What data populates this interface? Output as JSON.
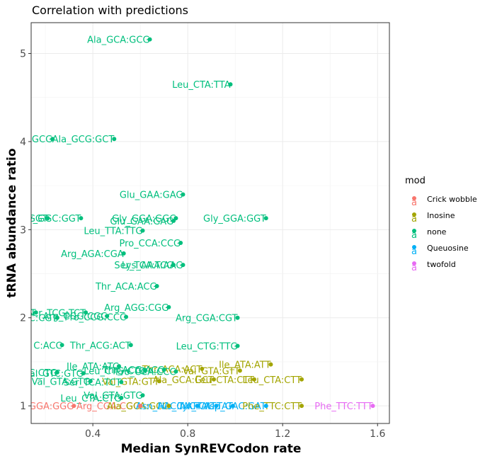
{
  "chart_data": {
    "type": "scatter",
    "title": "Correlation with predictions",
    "xlabel": "Median SynREVCodon rate",
    "ylabel": "tRNA abundance ratio",
    "xlim": [
      0.14,
      1.65
    ],
    "ylim": [
      0.8,
      5.35
    ],
    "xticks": [
      0.4,
      0.8,
      1.2,
      1.6
    ],
    "xtick_labels": [
      "0.4",
      "0.8",
      "1.2",
      "1.6"
    ],
    "yticks": [
      1,
      2,
      3,
      4,
      5
    ],
    "ytick_labels": [
      "1",
      "2",
      "3",
      "4",
      "5"
    ],
    "grid": true,
    "legend": {
      "title": "mod",
      "position": "right",
      "entries": [
        {
          "name": "Crick wobble",
          "color": "#F8766D"
        },
        {
          "name": "Inosine",
          "color": "#A3A500"
        },
        {
          "name": "none",
          "color": "#00BF7D"
        },
        {
          "name": "Queuosine",
          "color": "#00B0F6"
        },
        {
          "name": "twofold",
          "color": "#E76BF3"
        }
      ]
    },
    "points": [
      {
        "x": 0.64,
        "y": 5.16,
        "mod": "none",
        "label": "Ala_GCA:GCG"
      },
      {
        "x": 0.98,
        "y": 4.65,
        "mod": "none",
        "label": "Leu_CTA:TTA"
      },
      {
        "x": 0.49,
        "y": 4.03,
        "mod": "none",
        "label": "Ala_GCG:GCT"
      },
      {
        "x": 0.23,
        "y": 4.03,
        "mod": "none",
        "label": "GCG"
      },
      {
        "x": 0.78,
        "y": 3.4,
        "mod": "none",
        "label": "Glu_GAA:GAG"
      },
      {
        "x": 1.13,
        "y": 3.13,
        "mod": "none",
        "label": "Gly_GGA:GGT"
      },
      {
        "x": 0.35,
        "y": 3.13,
        "mod": "none",
        "label": "Gly_GGC:GGT"
      },
      {
        "x": 0.21,
        "y": 3.13,
        "mod": "none",
        "label": "GGC:GGT"
      },
      {
        "x": 0.75,
        "y": 3.13,
        "mod": "none",
        "label": "Gly_GGA:GGC"
      },
      {
        "x": 0.74,
        "y": 3.1,
        "mod": "none",
        "label": "Glu_GAA:GAG"
      },
      {
        "x": 0.61,
        "y": 2.99,
        "mod": "none",
        "label": "Leu_TTA:TTG"
      },
      {
        "x": 0.77,
        "y": 2.85,
        "mod": "none",
        "label": "Pro_CCA:CCG"
      },
      {
        "x": 0.53,
        "y": 2.73,
        "mod": "none",
        "label": "Arg_AGA:CGA"
      },
      {
        "x": 0.74,
        "y": 2.6,
        "mod": "none",
        "label": "Ser_TCA:TCG"
      },
      {
        "x": 0.78,
        "y": 2.6,
        "mod": "none",
        "label": "Lys_AAA:AAG"
      },
      {
        "x": 0.67,
        "y": 2.36,
        "mod": "none",
        "label": "Thr_ACA:ACG"
      },
      {
        "x": 0.72,
        "y": 2.12,
        "mod": "none",
        "label": "Arg_AGG:CGG"
      },
      {
        "x": 1.01,
        "y": 2.0,
        "mod": "none",
        "label": "Arg_CGA:CGT"
      },
      {
        "x": 0.54,
        "y": 2.01,
        "mod": "none",
        "label": "Pro_CCG:CCC"
      },
      {
        "x": 0.46,
        "y": 2.02,
        "mod": "none",
        "label": "Arg_CGG:CGC"
      },
      {
        "x": 0.25,
        "y": 2.0,
        "mod": "none",
        "label": "CGC:CGT"
      },
      {
        "x": 0.37,
        "y": 2.06,
        "mod": "none",
        "label": "Ser_TCG:TCT"
      },
      {
        "x": 0.16,
        "y": 2.06,
        "mod": "none",
        "label": "Ser_TCC:TCT"
      },
      {
        "x": 0.27,
        "y": 1.69,
        "mod": "none",
        "label": "C:ACC"
      },
      {
        "x": 0.56,
        "y": 1.69,
        "mod": "none",
        "label": "Thr_ACG:ACT"
      },
      {
        "x": 1.01,
        "y": 1.68,
        "mod": "none",
        "label": "Leu_CTG:TTG"
      },
      {
        "x": 1.15,
        "y": 1.47,
        "mod": "Inosine",
        "label": "Ile_ATA:ATT"
      },
      {
        "x": 0.51,
        "y": 1.45,
        "mod": "none",
        "label": "Ile_ATA:ATC"
      },
      {
        "x": 0.86,
        "y": 1.42,
        "mod": "Inosine",
        "label": "Thr_ACA:ACT"
      },
      {
        "x": 1.02,
        "y": 1.4,
        "mod": "Inosine",
        "label": "Val_GTA:GTT"
      },
      {
        "x": 0.62,
        "y": 1.4,
        "mod": "none",
        "label": "Leu_CTG:CTC"
      },
      {
        "x": 0.7,
        "y": 1.41,
        "mod": "none",
        "label": "Thr_ACG:ACC"
      },
      {
        "x": 0.75,
        "y": 1.39,
        "mod": "none",
        "label": "Pro_CCA:CCC"
      },
      {
        "x": 0.25,
        "y": 1.38,
        "mod": "none",
        "label": "CTC:CTG"
      },
      {
        "x": 0.36,
        "y": 1.37,
        "mod": "none",
        "label": "Val_GTC:GTG"
      },
      {
        "x": 1.08,
        "y": 1.3,
        "mod": "Inosine",
        "label": "Leu_CTA:CTT"
      },
      {
        "x": 1.28,
        "y": 1.3,
        "mod": "Inosine",
        "label": "Leu_CTA:CTT"
      },
      {
        "x": 0.91,
        "y": 1.3,
        "mod": "Inosine",
        "label": "Ala_GCA:GCT"
      },
      {
        "x": 0.68,
        "y": 1.28,
        "mod": "Inosine",
        "label": "Val_GTA:GTT"
      },
      {
        "x": 0.39,
        "y": 1.28,
        "mod": "none",
        "label": "Val_GTA:GTG"
      },
      {
        "x": 0.52,
        "y": 1.27,
        "mod": "none",
        "label": "Ser_TCA:TCT"
      },
      {
        "x": 0.61,
        "y": 1.12,
        "mod": "none",
        "label": "Val_GTA:GTG"
      },
      {
        "x": 0.52,
        "y": 1.09,
        "mod": "none",
        "label": "Leu_CTA:CTG"
      },
      {
        "x": 0.32,
        "y": 1.0,
        "mod": "Crick wobble",
        "label": "Gly_GGA:GGG"
      },
      {
        "x": 0.6,
        "y": 1.0,
        "mod": "Crick wobble",
        "label": "Arg_CGA:CGG"
      },
      {
        "x": 0.72,
        "y": 1.0,
        "mod": "Inosine",
        "label": "Ala_GCA:GCC"
      },
      {
        "x": 0.84,
        "y": 1.0,
        "mod": "Queuosine",
        "label": "Asn_AAC:AAT"
      },
      {
        "x": 0.92,
        "y": 1.0,
        "mod": "Queuosine",
        "label": "His_CAC:CAT"
      },
      {
        "x": 0.99,
        "y": 1.0,
        "mod": "Queuosine",
        "label": "Tyr_TAC:TAT"
      },
      {
        "x": 1.13,
        "y": 1.0,
        "mod": "Queuosine",
        "label": "Asp_GAC:GAT"
      },
      {
        "x": 1.28,
        "y": 1.0,
        "mod": "Inosine",
        "label": "Phe_TTC:CTT"
      },
      {
        "x": 1.58,
        "y": 1.0,
        "mod": "twofold",
        "label": "Phe_TTC:TTT"
      }
    ]
  }
}
